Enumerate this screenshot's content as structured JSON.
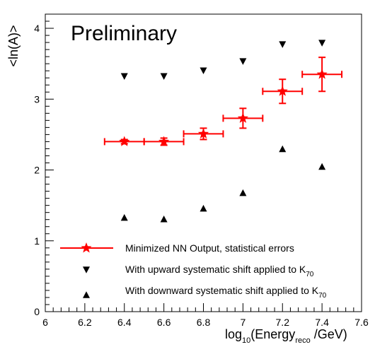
{
  "chart_data": {
    "type": "scatter",
    "title": "Preliminary",
    "xlabel": {
      "main": "log",
      "sub": "10",
      "main2": "(Energy",
      "sub2": "reco",
      "tail": " /GeV)"
    },
    "ylabel": "<ln(A)>",
    "xlim": [
      6.0,
      7.6
    ],
    "ylim": [
      0,
      4.2
    ],
    "x_ticks": [
      "6",
      "6.2",
      "6.4",
      "6.6",
      "6.8",
      "7",
      "7.2",
      "7.4",
      "7.6"
    ],
    "y_ticks": [
      "0",
      "1",
      "2",
      "3",
      "4"
    ],
    "colors": {
      "nominal": "#ff0000",
      "systematic": "#000000",
      "axis": "#000000"
    },
    "series": [
      {
        "name": "Minimized NN Output, statistical errors",
        "marker": "star",
        "x": [
          6.4,
          6.6,
          6.8,
          7.0,
          7.2,
          7.4
        ],
        "y": [
          2.4,
          2.4,
          2.51,
          2.73,
          3.11,
          3.35
        ],
        "xerr": [
          0.1,
          0.1,
          0.1,
          0.1,
          0.1,
          0.1
        ],
        "yerr": [
          0.03,
          0.05,
          0.08,
          0.14,
          0.17,
          0.24
        ]
      },
      {
        "name": "With upward systematic shift applied to K",
        "name_sub": "70",
        "marker": "triangle-down",
        "x": [
          6.4,
          6.6,
          6.8,
          7.0,
          7.2,
          7.4
        ],
        "y": [
          3.32,
          3.32,
          3.4,
          3.53,
          3.77,
          3.79
        ]
      },
      {
        "name": "With downward systematic shift applied to K",
        "name_sub": "70",
        "marker": "triangle-up",
        "x": [
          6.4,
          6.6,
          6.8,
          7.0,
          7.2,
          7.4
        ],
        "y": [
          1.33,
          1.31,
          1.46,
          1.68,
          2.3,
          2.05
        ]
      }
    ],
    "legend_position": "bottom-left",
    "grid": false
  }
}
